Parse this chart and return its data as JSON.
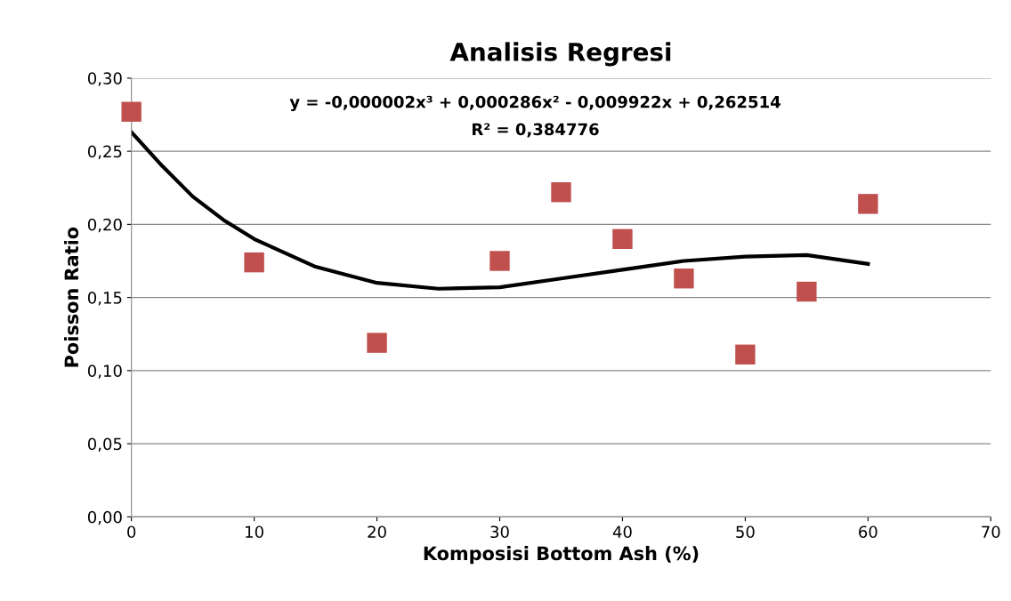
{
  "chart_data": {
    "type": "scatter",
    "title": "Analisis Regresi",
    "xlabel": "Komposisi Bottom Ash (%)",
    "ylabel": "Poisson Ratio",
    "annotations": [
      "y = -0,000002x³ + 0,000286x² - 0,009922x + 0,262514",
      "R² = 0,384776"
    ],
    "series": [
      {
        "color": "#c0504d",
        "marker": "square",
        "x": [
          0,
          10,
          20,
          30,
          35,
          40,
          45,
          50,
          55,
          60
        ],
        "values": [
          0.277,
          0.174,
          0.119,
          0.175,
          0.222,
          0.19,
          0.163,
          0.111,
          0.154,
          0.214
        ]
      },
      {
        "type": "line",
        "color": "#000000",
        "marker": "none",
        "line_style": "solid",
        "x": [
          0,
          2.5,
          5,
          7.5,
          10,
          15,
          20,
          25,
          30,
          35,
          40,
          45,
          50,
          55,
          60
        ],
        "values": [
          0.263,
          0.24,
          0.219,
          0.203,
          0.19,
          0.171,
          0.16,
          0.156,
          0.157,
          0.163,
          0.169,
          0.175,
          0.178,
          0.179,
          0.173
        ]
      }
    ],
    "xlim": [
      0,
      70
    ],
    "xticks": [
      0,
      10,
      20,
      30,
      40,
      50,
      60,
      70
    ],
    "ylim": [
      0,
      0.3
    ],
    "yticks": [
      {
        "value": 0,
        "label": "0,00"
      },
      {
        "value": 0.05,
        "label": "0,05"
      },
      {
        "value": 0.1,
        "label": "0,10"
      },
      {
        "value": 0.15,
        "label": "0,15"
      },
      {
        "value": 0.2,
        "label": "0,20"
      },
      {
        "value": 0.25,
        "label": "0,25"
      },
      {
        "value": 0.3,
        "label": "0,30"
      }
    ],
    "grid": "y",
    "legend": false
  }
}
